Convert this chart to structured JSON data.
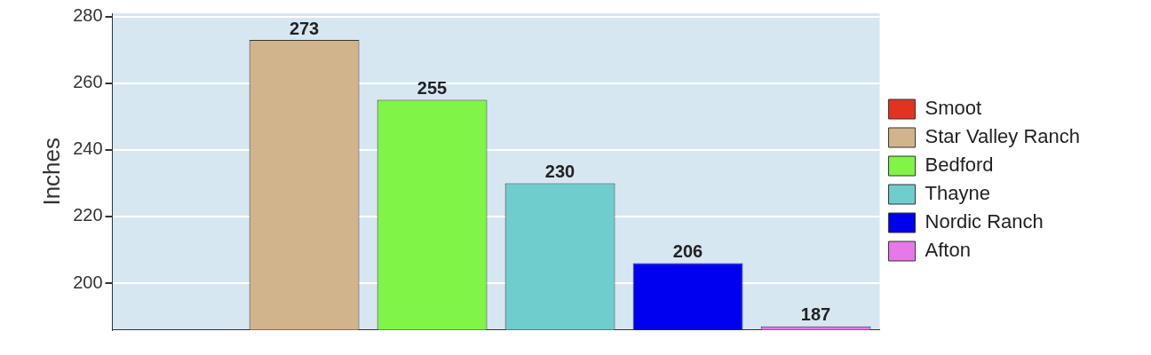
{
  "chart_data": {
    "type": "bar",
    "ylabel": "Inches",
    "categories": [
      null,
      null,
      null,
      null,
      null,
      null
    ],
    "series": [
      {
        "name": "Smoot",
        "color": "#e23222",
        "values": [
          null,
          null,
          null,
          null,
          null,
          null
        ]
      },
      {
        "name": "Star Valley Ranch",
        "color": "#d2b48c",
        "values": [
          null,
          273,
          null,
          null,
          null,
          null
        ]
      },
      {
        "name": "Bedford",
        "color": "#80f545",
        "values": [
          null,
          null,
          255,
          null,
          null,
          null
        ]
      },
      {
        "name": "Thayne",
        "color": "#70cdcd",
        "values": [
          null,
          null,
          null,
          230,
          null,
          null
        ]
      },
      {
        "name": "Nordic Ranch",
        "color": "#0000f0",
        "values": [
          null,
          null,
          null,
          null,
          206,
          null
        ]
      },
      {
        "name": "Afton",
        "color": "#e678ea",
        "values": [
          null,
          null,
          null,
          null,
          null,
          187
        ]
      }
    ],
    "ylim": [
      186,
      281
    ],
    "yticks": [
      200,
      220,
      240,
      260,
      280
    ],
    "grid": "y",
    "legend": "right",
    "data_labels": true
  }
}
